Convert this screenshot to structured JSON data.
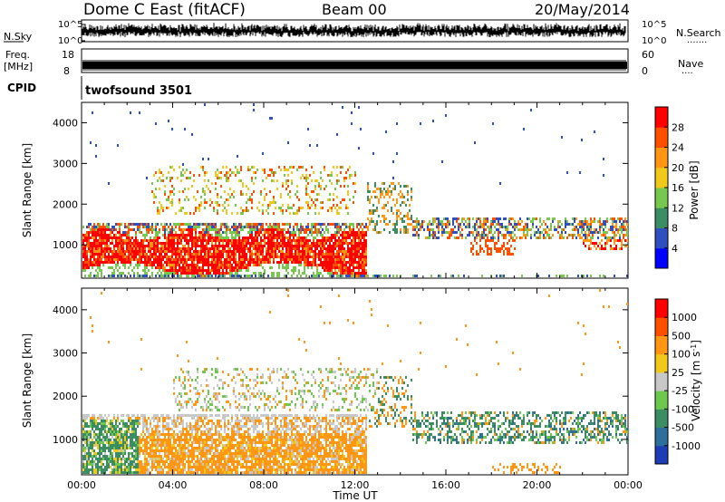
{
  "header": {
    "station": "Dome C East (fitACF)",
    "beam": "Beam 00",
    "date": "20/May/2014"
  },
  "nsky_panel": {
    "left_label": "N.Sky",
    "right_label": "N.Search",
    "right_dots": "·······",
    "tick_top": "10^5",
    "tick_bottom": "10^0",
    "right_tick_top": "10^5",
    "right_tick_bottom": "10^0"
  },
  "freq_panel": {
    "left_label_1": "Freq.",
    "left_label_2": "[MHz]",
    "right_label": "Nave",
    "right_dots": "····",
    "tick_top": "18",
    "tick_bottom": "8",
    "right_tick_top": "60",
    "right_tick_bottom": "0"
  },
  "cpid": {
    "label": "CPID",
    "value": "twofsound 3501"
  },
  "chart_data": [
    {
      "type": "heatmap",
      "title": "",
      "ylabel": "Slant Range [km]",
      "xlabel": "",
      "ylim": [
        180,
        4500
      ],
      "yticks": [
        "1000",
        "2000",
        "3000",
        "4000"
      ],
      "xticks": [
        "00:00",
        "04:00",
        "08:00",
        "12:00",
        "16:00",
        "20:00",
        "00:00"
      ],
      "colorbar": {
        "label": "Power [dB]",
        "ticks": [
          "4",
          "8",
          "12",
          "16",
          "20",
          "24",
          "28"
        ],
        "colors": [
          "#0000ff",
          "#2f4fbf",
          "#3c8c64",
          "#78c850",
          "#f0c81e",
          "#ff9614",
          "#ff5000",
          "#ff0000"
        ]
      }
    },
    {
      "type": "heatmap",
      "title": "",
      "ylabel": "Slant Range [km]",
      "xlabel": "Time UT",
      "ylim": [
        180,
        4500
      ],
      "yticks": [
        "1000",
        "2000",
        "3000",
        "4000"
      ],
      "xticks": [
        "00:00",
        "04:00",
        "08:00",
        "12:00",
        "16:00",
        "20:00",
        "00:00"
      ],
      "colorbar": {
        "label": "Velocity [m s^-1]",
        "ticks": [
          "1000",
          "500",
          "100",
          "25",
          "-25",
          "-100",
          "-500",
          "-1000"
        ],
        "colors": [
          "#1e3cb4",
          "#2f6e9a",
          "#3c8c64",
          "#6ec850",
          "#c8c8c8",
          "#f0c81e",
          "#ff9614",
          "#ff5000",
          "#ff0000"
        ]
      }
    }
  ]
}
